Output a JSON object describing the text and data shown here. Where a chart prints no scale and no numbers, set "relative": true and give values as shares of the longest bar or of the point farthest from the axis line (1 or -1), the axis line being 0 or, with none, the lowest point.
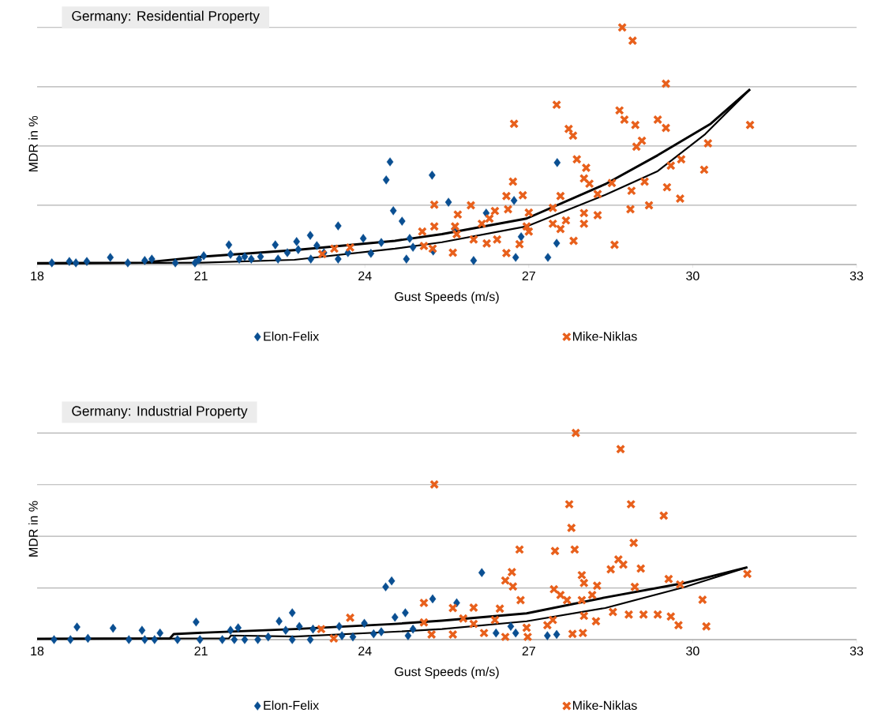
{
  "chart_data": [
    {
      "type": "scatter",
      "title": "Germany: Residential Property",
      "xlabel": "Gust Speeds (m/s)",
      "ylabel": "MDR in %",
      "xlim": [
        18,
        33
      ],
      "xticks": [
        18,
        21,
        24,
        27,
        30,
        33
      ],
      "relative": true,
      "grid": "y",
      "legend": "bottom",
      "series": [
        {
          "name": "Elon-Felix",
          "color": "#0a4f92",
          "marker": "diamond",
          "x": [
            18.27,
            18.59,
            18.71,
            18.91,
            19.34,
            19.66,
            19.97,
            20.1,
            20.53,
            20.89,
            20.96,
            21.05,
            21.51,
            21.54,
            21.7,
            21.8,
            21.92,
            22.09,
            22.36,
            22.41,
            22.58,
            22.75,
            22.78,
            23.0,
            23.01,
            23.12,
            23.25,
            23.51,
            23.51,
            23.69,
            23.97,
            24.11,
            24.3,
            24.39,
            24.46,
            24.52,
            24.68,
            24.76,
            24.82,
            24.88,
            25.23,
            25.25,
            25.53,
            25.64,
            25.99,
            26.22,
            26.73,
            26.76,
            26.86,
            27.35,
            27.51,
            27.52
          ],
          "values": [
            0.007,
            0.013,
            0.007,
            0.013,
            0.03,
            0.007,
            0.017,
            0.023,
            0.007,
            0.007,
            0.02,
            0.037,
            0.083,
            0.043,
            0.023,
            0.033,
            0.023,
            0.033,
            0.083,
            0.023,
            0.05,
            0.097,
            0.063,
            0.123,
            0.023,
            0.08,
            0.05,
            0.163,
            0.023,
            0.05,
            0.11,
            0.047,
            0.093,
            0.357,
            0.433,
            0.227,
            0.183,
            0.023,
            0.11,
            0.073,
            0.377,
            0.057,
            0.263,
            0.15,
            0.017,
            0.217,
            0.27,
            0.03,
            0.117,
            0.03,
            0.09,
            0.43
          ]
        },
        {
          "name": "Mike-Niklas",
          "color": "#e8601c",
          "marker": "cross",
          "x": [
            28.71,
            28.9,
            29.51,
            27.51,
            26.73,
            28.66,
            28.75,
            28.95,
            29.36,
            29.51,
            31.05,
            27.73,
            27.81,
            29.07,
            28.97,
            30.28,
            27.88,
            28.05,
            29.79,
            29.6,
            28.01,
            28.11,
            30.21,
            26.71,
            28.52,
            29.12,
            28.88,
            29.53,
            29.77,
            26.59,
            26.89,
            27.58,
            28.26,
            25.27,
            25.94,
            25.7,
            26.38,
            26.62,
            27.0,
            27.44,
            28.01,
            28.26,
            28.86,
            29.2,
            25.27,
            25.05,
            25.65,
            26.14,
            26.28,
            26.96,
            27.44,
            27.68,
            28.01,
            25.68,
            25.99,
            26.42,
            27.0,
            27.58,
            27.82,
            28.57,
            25.24,
            25.61,
            26.59,
            26.83,
            26.23,
            25.08,
            23.22,
            23.44,
            23.73
          ],
          "values": [
            1,
            0.944,
            0.763,
            0.674,
            0.594,
            0.65,
            0.611,
            0.589,
            0.611,
            0.576,
            0.589,
            0.572,
            0.544,
            0.522,
            0.497,
            0.511,
            0.444,
            0.408,
            0.444,
            0.417,
            0.363,
            0.341,
            0.4,
            0.35,
            0.344,
            0.35,
            0.311,
            0.326,
            0.278,
            0.289,
            0.292,
            0.289,
            0.297,
            0.252,
            0.25,
            0.211,
            0.226,
            0.233,
            0.219,
            0.239,
            0.217,
            0.208,
            0.233,
            0.25,
            0.161,
            0.139,
            0.161,
            0.172,
            0.194,
            0.161,
            0.172,
            0.186,
            0.172,
            0.128,
            0.106,
            0.106,
            0.139,
            0.15,
            0.1,
            0.083,
            0.067,
            0.05,
            0.048,
            0.086,
            0.089,
            0.078,
            0.044,
            0.067,
            0.072
          ]
        },
        {
          "type": "line",
          "color": "#000000",
          "marker": "none",
          "x": [
            18,
            19.92,
            21.03,
            22.71,
            24.55,
            25.41,
            26.96,
            28.4,
            29.36,
            30.33,
            31.05
          ],
          "values": [
            0.006,
            0.008,
            0.033,
            0.061,
            0.1,
            0.128,
            0.194,
            0.339,
            0.461,
            0.594,
            0.739
          ]
        },
        {
          "type": "line",
          "color": "#000000",
          "marker": "none",
          "x": [
            18,
            21.03,
            22.71,
            24.55,
            25.41,
            26.96,
            28.4,
            29.36,
            30.23,
            31.05
          ],
          "values": [
            0.004,
            0.008,
            0.02,
            0.067,
            0.094,
            0.161,
            0.294,
            0.394,
            0.55,
            0.739
          ]
        }
      ]
    },
    {
      "type": "scatter",
      "title": "Germany: Industrial Property",
      "xlabel": "Gust Speeds (m/s)",
      "ylabel": "MDR in %",
      "xlim": [
        18,
        33
      ],
      "xticks": [
        18,
        21,
        24,
        27,
        30,
        33
      ],
      "relative": true,
      "grid": "y",
      "legend": "bottom",
      "series": [
        {
          "name": "Elon-Felix",
          "color": "#0a4f92",
          "marker": "diamond",
          "x": [
            18.31,
            18.61,
            18.73,
            18.93,
            19.39,
            19.68,
            19.92,
            19.97,
            20.15,
            20.25,
            20.57,
            20.91,
            20.98,
            21.39,
            21.54,
            21.68,
            21.61,
            21.8,
            22.04,
            22.23,
            22.43,
            22.55,
            22.67,
            22.67,
            22.8,
            23.0,
            23.05,
            23.53,
            23.58,
            23.78,
            23.99,
            24.16,
            24.3,
            24.38,
            24.49,
            24.55,
            24.74,
            24.79,
            24.88,
            25.24,
            26.14,
            26.76,
            27.34,
            27.51,
            25.68,
            26.67,
            26.4
          ],
          "values": [
            0,
            0,
            0.061,
            0.006,
            0.055,
            0,
            0.045,
            0,
            0,
            0.032,
            0,
            0.085,
            0,
            0,
            0.045,
            0.057,
            0,
            0,
            0,
            0.013,
            0.089,
            0.045,
            0.13,
            0,
            0.064,
            0,
            0.051,
            0.064,
            0.019,
            0.013,
            0.079,
            0.028,
            0.038,
            0.255,
            0.284,
            0.108,
            0.13,
            0.019,
            0.051,
            0.197,
            0.324,
            0.032,
            0.019,
            0.025,
            0.178,
            0.064,
            0.032
          ]
        },
        {
          "name": "Mike-Niklas",
          "color": "#e8601c",
          "marker": "cross",
          "x": [
            27.86,
            28.68,
            25.27,
            27.74,
            28.87,
            29.47,
            27.78,
            28.92,
            26.83,
            27.48,
            27.84,
            28.64,
            28.73,
            28.5,
            29.05,
            26.69,
            26.57,
            26.71,
            27.97,
            28.01,
            28.25,
            28.94,
            31.0,
            29.56,
            29.77,
            30.18,
            30.25,
            29.74,
            25.08,
            27.46,
            27.58,
            27.7,
            27.97,
            28.16,
            25.61,
            25.99,
            26.47,
            26.85,
            28.83,
            29.1,
            29.36,
            29.6,
            28.54,
            28.23,
            28.01,
            27.44,
            27.34,
            27.8,
            27.99,
            26.96,
            26.98,
            26.57,
            26.18,
            25.61,
            25.22,
            25.08,
            25.99,
            25.8,
            26.38,
            23.73,
            23.2,
            23.43
          ],
          "values": [
            1,
            0.922,
            0.751,
            0.655,
            0.655,
            0.6,
            0.541,
            0.468,
            0.436,
            0.429,
            0.436,
            0.388,
            0.363,
            0.34,
            0.344,
            0.327,
            0.286,
            0.257,
            0.312,
            0.274,
            0.261,
            0.255,
            0.318,
            0.293,
            0.267,
            0.193,
            0.064,
            0.07,
            0.178,
            0.244,
            0.216,
            0.191,
            0.191,
            0.216,
            0.153,
            0.155,
            0.15,
            0.191,
            0.121,
            0.121,
            0.121,
            0.112,
            0.134,
            0.089,
            0.115,
            0.095,
            0.07,
            0.028,
            0.032,
            0.057,
            0.013,
            0.013,
            0.032,
            0.025,
            0.025,
            0.083,
            0.076,
            0.102,
            0.095,
            0.106,
            0.051,
            0.006
          ]
        },
        {
          "type": "line",
          "color": "#000000",
          "marker": "none",
          "x": [
            18,
            20.43,
            20.5,
            21.17,
            22.72,
            24.55,
            25.41,
            26.96,
            28.4,
            29.85,
            31.0
          ],
          "values": [
            0.004,
            0.006,
            0.027,
            0.035,
            0.051,
            0.076,
            0.092,
            0.127,
            0.204,
            0.274,
            0.35
          ]
        },
        {
          "type": "line",
          "color": "#000000",
          "marker": "none",
          "x": [
            18,
            21.51,
            21.55,
            22.72,
            24.55,
            25.41,
            26.96,
            28.4,
            29.85,
            31.0
          ],
          "values": [
            0.004,
            0.006,
            0.02,
            0.015,
            0.038,
            0.051,
            0.089,
            0.153,
            0.254,
            0.35
          ]
        }
      ]
    }
  ]
}
